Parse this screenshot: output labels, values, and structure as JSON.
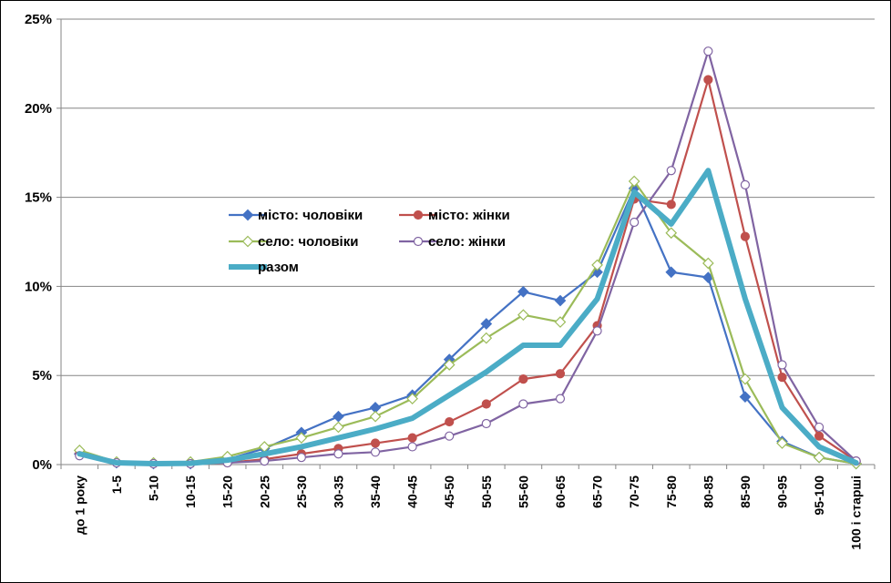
{
  "chart_data": {
    "type": "line",
    "title": "",
    "xlabel": "",
    "ylabel": "",
    "ylim": [
      0,
      25
    ],
    "yticks": [
      "0%",
      "5%",
      "10%",
      "15%",
      "20%",
      "25%"
    ],
    "y_unit": "%",
    "grid": "horizontal",
    "legend_position": "center-left",
    "categories": [
      "до 1 року",
      "1-5",
      "5-10",
      "10-15",
      "15-20",
      "20-25",
      "25-30",
      "30-35",
      "35-40",
      "40-45",
      "45-50",
      "50-55",
      "55-60",
      "60-65",
      "65-70",
      "70-75",
      "75-80",
      "80-85",
      "85-90",
      "90-95",
      "95-100",
      "100 і старші"
    ],
    "series": [
      {
        "name": "місто: чоловіки",
        "color": "#4472C4",
        "marker": "diamond-filled",
        "values": [
          0.6,
          0.1,
          0.05,
          0.05,
          0.3,
          0.9,
          1.8,
          2.7,
          3.2,
          3.9,
          5.9,
          7.9,
          9.7,
          9.2,
          10.8,
          15.5,
          10.8,
          10.5,
          3.8,
          1.3,
          0.4,
          0.05
        ]
      },
      {
        "name": "місто: жінки",
        "color": "#C0504D",
        "marker": "circle-filled",
        "values": [
          0.6,
          0.1,
          0.05,
          0.05,
          0.1,
          0.3,
          0.6,
          0.9,
          1.2,
          1.5,
          2.4,
          3.4,
          4.8,
          5.1,
          7.8,
          14.9,
          14.6,
          21.6,
          12.8,
          4.9,
          1.6,
          0.2
        ]
      },
      {
        "name": "село: чоловіки",
        "color": "#9BBB59",
        "marker": "diamond-open",
        "values": [
          0.8,
          0.15,
          0.1,
          0.15,
          0.45,
          1.0,
          1.5,
          2.1,
          2.7,
          3.7,
          5.6,
          7.1,
          8.4,
          8.0,
          11.2,
          15.9,
          13.0,
          11.3,
          4.8,
          1.2,
          0.4,
          0.05
        ]
      },
      {
        "name": "село: жінки",
        "color": "#8064A2",
        "marker": "circle-open",
        "values": [
          0.5,
          0.1,
          0.05,
          0.05,
          0.1,
          0.2,
          0.4,
          0.6,
          0.7,
          1.0,
          1.6,
          2.3,
          3.4,
          3.7,
          7.5,
          13.6,
          16.5,
          23.2,
          15.7,
          5.6,
          2.1,
          0.2
        ]
      },
      {
        "name": "разом",
        "color": "#4BACC6",
        "marker": "none",
        "thick": true,
        "values": [
          0.6,
          0.1,
          0.05,
          0.07,
          0.25,
          0.6,
          1.0,
          1.5,
          2.0,
          2.6,
          3.9,
          5.2,
          6.7,
          6.7,
          9.3,
          15.3,
          13.5,
          16.5,
          9.3,
          3.2,
          1.0,
          0.1
        ]
      }
    ]
  }
}
